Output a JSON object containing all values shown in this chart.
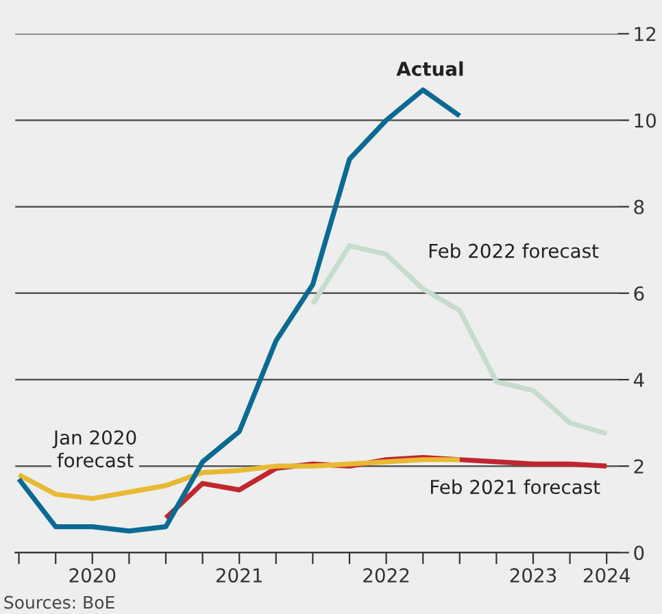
{
  "chart_data": {
    "type": "line",
    "categories": [
      null,
      null,
      "2020",
      null,
      null,
      null,
      "2021",
      null,
      null,
      null,
      "2022",
      null,
      null,
      null,
      "2023",
      null,
      "2024"
    ],
    "series": [
      {
        "name": "Feb 2022 forecast",
        "color": "#c6dccd",
        "values": [
          null,
          null,
          null,
          null,
          null,
          null,
          null,
          null,
          5.75,
          7.1,
          6.9,
          6.1,
          5.6,
          3.95,
          3.75,
          3.0,
          2.75
        ]
      },
      {
        "name": "Feb 2021 forecast",
        "color": "#c1262f",
        "values": [
          null,
          null,
          null,
          null,
          0.8,
          1.6,
          1.45,
          1.95,
          2.05,
          2.0,
          2.15,
          2.2,
          2.15,
          2.1,
          2.05,
          2.05,
          2.0
        ]
      },
      {
        "name": "Jan 2020\nforecast",
        "color": "#e8b933",
        "values": [
          1.8,
          1.35,
          1.25,
          1.4,
          1.55,
          1.85,
          1.9,
          2.0,
          2.0,
          2.05,
          2.1,
          2.15,
          2.15,
          null,
          null,
          null,
          null
        ]
      },
      {
        "name": "Actual",
        "color": "#0b6a94",
        "values": [
          1.7,
          0.6,
          0.6,
          0.5,
          0.6,
          2.1,
          2.8,
          4.9,
          6.2,
          9.1,
          10.0,
          10.7,
          10.1,
          null,
          null,
          null,
          null
        ]
      }
    ],
    "ylim": [
      0,
      12
    ],
    "yticks": [
      0,
      2,
      4,
      6,
      8,
      10,
      12
    ],
    "grid": "y",
    "legend": false,
    "annotations": [
      "Sources: BoE"
    ]
  }
}
